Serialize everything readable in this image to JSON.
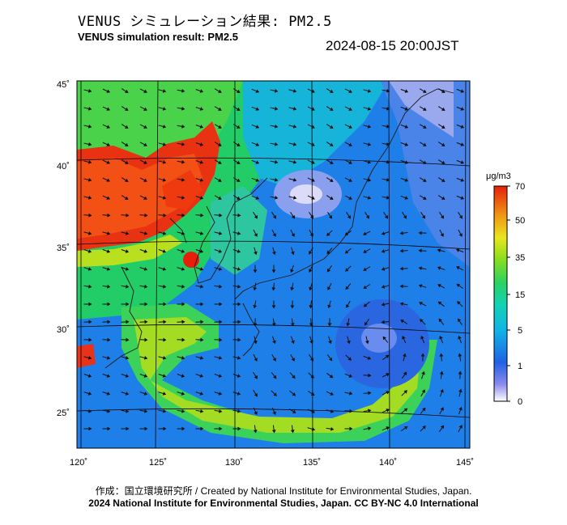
{
  "title_jp": "VENUS シミュレーション結果: PM2.5",
  "title_en": "VENUS simulation result: PM2.5",
  "timestamp": "2024-08-15 20:00JST",
  "lat_labels": [
    "45˚",
    "40˚",
    "35˚",
    "30˚",
    "25˚"
  ],
  "lon_labels": [
    "120˚",
    "125˚",
    "130˚",
    "135˚",
    "140˚",
    "145˚"
  ],
  "colorbar": {
    "unit": "μg/m3",
    "ticks": [
      "70",
      "50",
      "35",
      "15",
      "5",
      "1",
      "0"
    ],
    "colors": [
      "#ffffff",
      "#8080f0",
      "#1e64e6",
      "#0aa0e6",
      "#10d2c8",
      "#22d26e",
      "#7adc1e",
      "#e6e61e",
      "#f0a014",
      "#f05a0a",
      "#e61e0a"
    ]
  },
  "credit": "作成：国立環境研究所 / Created by National Institute for Environmental Studies, Japan.",
  "copyright": "2024 National Institute for Environmental Studies, Japan. CC BY-NC 4.0 International"
}
